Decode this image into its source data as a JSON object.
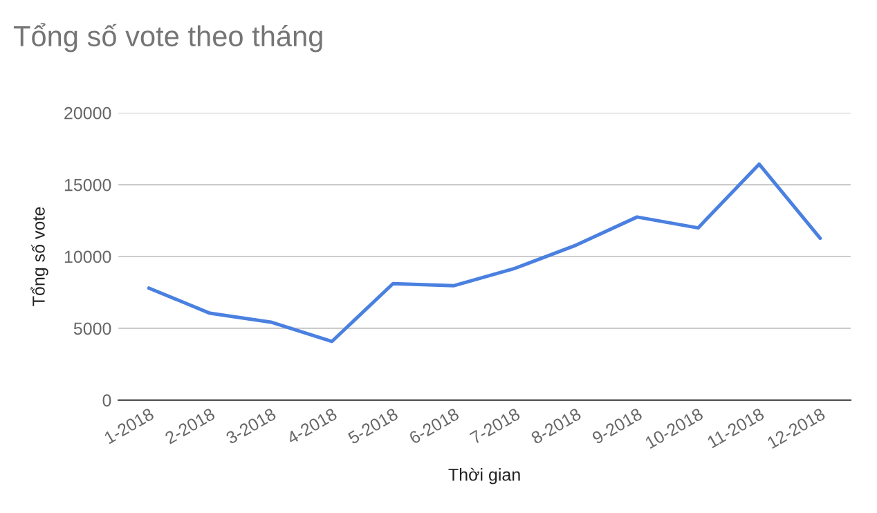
{
  "chart_data": {
    "type": "line",
    "title": "Tổng số vote theo tháng",
    "xlabel": "Thời gian",
    "ylabel": "Tổng số vote",
    "categories": [
      "1-2018",
      "2-2018",
      "3-2018",
      "4-2018",
      "5-2018",
      "6-2018",
      "7-2018",
      "8-2018",
      "9-2018",
      "10-2018",
      "11-2018",
      "12-2018"
    ],
    "series": [
      {
        "color": "#4a80e0",
        "values": [
          7800,
          6050,
          5430,
          4090,
          8110,
          7970,
          9180,
          10790,
          12750,
          11990,
          16430,
          11270
        ]
      }
    ],
    "ylim": [
      0,
      20000
    ],
    "yticks": [
      0,
      5000,
      10000,
      15000,
      20000
    ],
    "grid": "y",
    "marker": "none",
    "line_style": "solid"
  }
}
